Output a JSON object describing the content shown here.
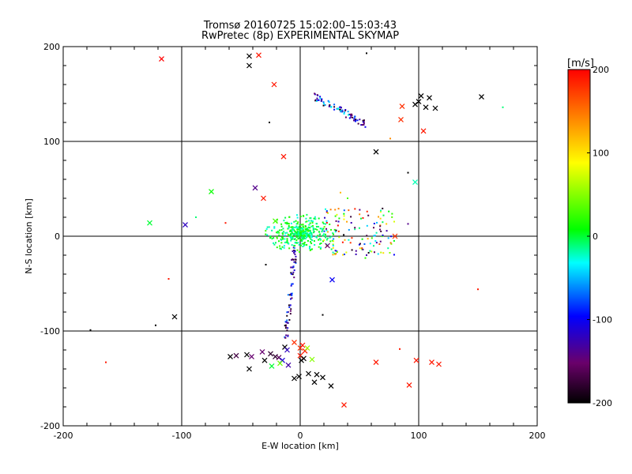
{
  "chart_data": {
    "type": "scatter",
    "title": "Tromsø 20160725 15:02:00–15:03:43",
    "subtitle": "RwPretec (8p) EXPERIMENTAL SKYMAP",
    "xlabel": "E-W location [km]",
    "ylabel": "N-S location [km]",
    "xlim": [
      -200,
      200
    ],
    "ylim": [
      -200,
      200
    ],
    "xticks": [
      "-200",
      "-100",
      "0",
      "100",
      "200"
    ],
    "yticks": [
      "-200",
      "-100",
      "0",
      "100",
      "200"
    ],
    "grid": "lines at -100, 0, 100",
    "colorbar": {
      "label": "[m/s]",
      "range": [
        -200,
        200
      ],
      "ticks": [
        "-200",
        "-100",
        "0",
        "100",
        "200"
      ],
      "colormap": "rainbow: black → purple → blue → cyan → green → yellow → orange → red"
    },
    "markers": {
      "x_symbols": [
        {
          "x": -117,
          "y": 187,
          "v": 200
        },
        {
          "x": -43,
          "y": 190,
          "v": -200
        },
        {
          "x": -35,
          "y": 191,
          "v": 190
        },
        {
          "x": -43,
          "y": 180,
          "v": -200
        },
        {
          "x": -22,
          "y": 160,
          "v": 190
        },
        {
          "x": -14,
          "y": 84,
          "v": 190
        },
        {
          "x": -38,
          "y": 51,
          "v": -140
        },
        {
          "x": -31,
          "y": 40,
          "v": 190
        },
        {
          "x": -75,
          "y": 47,
          "v": 10
        },
        {
          "x": -127,
          "y": 14,
          "v": 0
        },
        {
          "x": -97,
          "y": 12,
          "v": -120
        },
        {
          "x": -21,
          "y": 16,
          "v": 30
        },
        {
          "x": -106,
          "y": -85,
          "v": -200
        },
        {
          "x": 80,
          "y": 0,
          "v": 180
        },
        {
          "x": 23,
          "y": -10,
          "v": -150
        },
        {
          "x": 27,
          "y": -46,
          "v": -100
        },
        {
          "x": 97,
          "y": 57,
          "v": -20
        },
        {
          "x": 64,
          "y": 89,
          "v": -200
        },
        {
          "x": 85,
          "y": 123,
          "v": 180
        },
        {
          "x": 86,
          "y": 137,
          "v": 180
        },
        {
          "x": 97,
          "y": 139,
          "v": -200
        },
        {
          "x": 100,
          "y": 142,
          "v": -200
        },
        {
          "x": 102,
          "y": 148,
          "v": -200
        },
        {
          "x": 109,
          "y": 146,
          "v": -200
        },
        {
          "x": 114,
          "y": 135,
          "v": -200
        },
        {
          "x": 106,
          "y": 136,
          "v": -200
        },
        {
          "x": 104,
          "y": 111,
          "v": 190
        },
        {
          "x": 153,
          "y": 147,
          "v": -200
        },
        {
          "x": -59,
          "y": -127,
          "v": -200
        },
        {
          "x": -54,
          "y": -126,
          "v": -170
        },
        {
          "x": -45,
          "y": -125,
          "v": -200
        },
        {
          "x": -41,
          "y": -127,
          "v": -150
        },
        {
          "x": -32,
          "y": -122,
          "v": -150
        },
        {
          "x": -30,
          "y": -131,
          "v": -200
        },
        {
          "x": -43,
          "y": -140,
          "v": -200
        },
        {
          "x": -25,
          "y": -124,
          "v": -180
        },
        {
          "x": -21,
          "y": -127,
          "v": -180
        },
        {
          "x": -18,
          "y": -128,
          "v": -160
        },
        {
          "x": -13,
          "y": -117,
          "v": -200
        },
        {
          "x": -11,
          "y": -120,
          "v": -120
        },
        {
          "x": -15,
          "y": -131,
          "v": -110
        },
        {
          "x": -10,
          "y": -136,
          "v": -130
        },
        {
          "x": -24,
          "y": -137,
          "v": 0
        },
        {
          "x": -17,
          "y": -134,
          "v": 40
        },
        {
          "x": -5,
          "y": -112,
          "v": 180
        },
        {
          "x": 0,
          "y": -118,
          "v": 180
        },
        {
          "x": 2,
          "y": -115,
          "v": 190
        },
        {
          "x": 4,
          "y": -121,
          "v": 190
        },
        {
          "x": 0,
          "y": -126,
          "v": 190
        },
        {
          "x": 6,
          "y": -118,
          "v": 60
        },
        {
          "x": 10,
          "y": -130,
          "v": 50
        },
        {
          "x": 3,
          "y": -129,
          "v": -200
        },
        {
          "x": 1,
          "y": -131,
          "v": -200
        },
        {
          "x": 7,
          "y": -145,
          "v": -200
        },
        {
          "x": -5,
          "y": -150,
          "v": -200
        },
        {
          "x": -1,
          "y": -148,
          "v": -200
        },
        {
          "x": 14,
          "y": -146,
          "v": -200
        },
        {
          "x": 19,
          "y": -149,
          "v": -200
        },
        {
          "x": 12,
          "y": -154,
          "v": -200
        },
        {
          "x": 26,
          "y": -158,
          "v": -200
        },
        {
          "x": 37,
          "y": -178,
          "v": 190
        },
        {
          "x": 64,
          "y": -133,
          "v": 190
        },
        {
          "x": 92,
          "y": -157,
          "v": 190
        },
        {
          "x": 98,
          "y": -131,
          "v": 190
        },
        {
          "x": 111,
          "y": -133,
          "v": 190
        },
        {
          "x": 117,
          "y": -135,
          "v": 190
        }
      ],
      "dots": [
        {
          "x": -177,
          "y": -99,
          "v": -200
        },
        {
          "x": -164,
          "y": -133,
          "v": 190
        },
        {
          "x": -122,
          "y": -94,
          "v": -200
        },
        {
          "x": -111,
          "y": -45,
          "v": 190
        },
        {
          "x": -88,
          "y": 20,
          "v": -10
        },
        {
          "x": -63,
          "y": 14,
          "v": 190
        },
        {
          "x": -26,
          "y": 120,
          "v": -200
        },
        {
          "x": 56,
          "y": 193,
          "v": -200
        },
        {
          "x": 76,
          "y": 103,
          "v": 140
        },
        {
          "x": 91,
          "y": 67,
          "v": -200
        },
        {
          "x": 91,
          "y": 13,
          "v": -140
        },
        {
          "x": 150,
          "y": -56,
          "v": 190
        },
        {
          "x": 171,
          "y": 136,
          "v": -10
        },
        {
          "x": 84,
          "y": -119,
          "v": 190
        },
        {
          "x": -29,
          "y": -30,
          "v": -200
        },
        {
          "x": 19,
          "y": -83,
          "v": -200
        },
        {
          "x": 34,
          "y": 46,
          "v": 120
        },
        {
          "x": 40,
          "y": 40,
          "v": 30
        },
        {
          "x": 62,
          "y": 9,
          "v": -160
        },
        {
          "x": 68,
          "y": 27,
          "v": -20
        },
        {
          "x": 55,
          "y": -23,
          "v": 20
        }
      ],
      "northern_cluster": {
        "x_range": [
          12,
          55
        ],
        "y_range": [
          118,
          147
        ],
        "v_range": [
          -200,
          -20
        ]
      },
      "central_cluster": {
        "center": [
          0,
          3
        ],
        "spread_km": 25,
        "v_range": [
          -30,
          30
        ]
      },
      "eastern_spread": {
        "x_range": [
          20,
          80
        ],
        "y_range": [
          -20,
          30
        ],
        "v_range": [
          -200,
          200
        ]
      },
      "southward_streak": {
        "x_range": [
          -18,
          -4
        ],
        "y_range": [
          -110,
          -10
        ],
        "v_range": [
          -200,
          -60
        ]
      }
    }
  }
}
